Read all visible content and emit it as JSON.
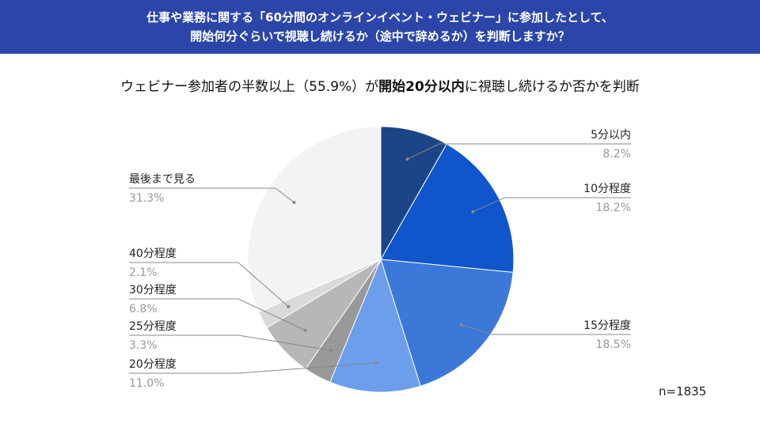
{
  "header": {
    "line1": "仕事や業務に関する「60分間のオンラインイベント・ウェビナー」に参加したとして、",
    "line2": "開始何分ぐらいで視聴し続けるか（途中で辞めるか）を判断しますか？"
  },
  "subtitle": {
    "pre": "ウェビナー参加者の半数以上（55.9%）が",
    "bold": "開始20分以内",
    "post": "に視聴し続けるか否かを判断"
  },
  "sample_size": "n=1835",
  "colors": {
    "header_bg": "#2b46a8",
    "slices": [
      "#1c4587",
      "#1155cc",
      "#3c78d8",
      "#6d9eeb",
      "#999999",
      "#b7b7b7",
      "#d9d9d9",
      "#f3f3f3"
    ]
  },
  "chart_data": {
    "type": "pie",
    "title": "",
    "start_angle_deg": 0,
    "direction": "clockwise",
    "slices": [
      {
        "label": "5分以内",
        "value": 8.2,
        "display": "8.2%"
      },
      {
        "label": "10分程度",
        "value": 18.2,
        "display": "18.2%"
      },
      {
        "label": "15分程度",
        "value": 18.5,
        "display": "18.5%"
      },
      {
        "label": "20分程度",
        "value": 11.0,
        "display": "11.0%"
      },
      {
        "label": "25分程度",
        "value": 3.3,
        "display": "3.3%"
      },
      {
        "label": "30分程度",
        "value": 6.8,
        "display": "6.8%"
      },
      {
        "label": "40分程度",
        "value": 2.1,
        "display": "2.1%"
      },
      {
        "label": "最後まで見る",
        "value": 31.3,
        "display": "31.3%"
      }
    ]
  }
}
